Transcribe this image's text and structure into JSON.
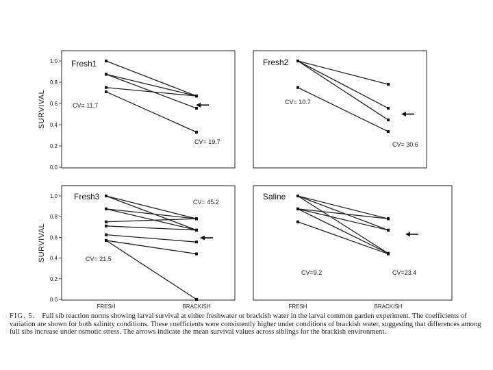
{
  "chart_data": [
    {
      "type": "line",
      "title": "Fresh1",
      "ylabel": "SURVIVAL",
      "ylim": [
        0,
        1.0
      ],
      "yticks": [
        "0.0",
        "0.2",
        "0.4",
        "0.6",
        "0.8",
        "1.0"
      ],
      "categories": [
        "FRESH",
        "BRACKISH"
      ],
      "series": [
        {
          "values": [
            1.0,
            0.67
          ]
        },
        {
          "values": [
            0.875,
            0.67
          ]
        },
        {
          "values": [
            0.875,
            0.555
          ]
        },
        {
          "values": [
            0.75,
            0.67
          ]
        },
        {
          "values": [
            0.71,
            0.33
          ]
        }
      ],
      "mean_arrow": 0.585,
      "cv_labels": {
        "fresh": "CV= 11.7",
        "brackish": "CV= 19.7"
      }
    },
    {
      "type": "line",
      "title": "Fresh2",
      "ylim": [
        0,
        1.0
      ],
      "yticks": [
        "0.0",
        "0.2",
        "0.4",
        "0.6",
        "0.8",
        "1.0"
      ],
      "categories": [
        "FRESH",
        "BRACKISH"
      ],
      "series": [
        {
          "values": [
            1.0,
            0.78
          ]
        },
        {
          "values": [
            1.0,
            0.555
          ]
        },
        {
          "values": [
            1.0,
            0.445
          ]
        },
        {
          "values": [
            0.75,
            0.335
          ]
        }
      ],
      "mean_arrow": 0.5,
      "cv_labels": {
        "fresh": "CV= 10.7",
        "brackish": "CV= 30.6"
      }
    },
    {
      "type": "line",
      "title": "Fresh3",
      "ylabel": "SURVIVAL",
      "ylim": [
        0,
        1.0
      ],
      "yticks": [
        "0.0",
        "0.2",
        "0.4",
        "0.6",
        "0.8",
        "1.0"
      ],
      "categories": [
        "FRESH",
        "BRACKISH"
      ],
      "series": [
        {
          "values": [
            1.0,
            0.78
          ]
        },
        {
          "values": [
            1.0,
            0.67
          ]
        },
        {
          "values": [
            0.875,
            0.78
          ]
        },
        {
          "values": [
            0.875,
            0.67
          ]
        },
        {
          "values": [
            0.75,
            0.78
          ]
        },
        {
          "values": [
            0.71,
            0.67
          ]
        },
        {
          "values": [
            0.625,
            0.555
          ]
        },
        {
          "values": [
            0.57,
            0.44
          ]
        },
        {
          "values": [
            0.57,
            0.0
          ]
        }
      ],
      "mean_arrow": 0.595,
      "cv_labels": {
        "fresh": "CV= 21.5",
        "brackish": "CV= 45.2"
      }
    },
    {
      "type": "line",
      "title": "Saline",
      "ylim": [
        0,
        1.0
      ],
      "categories": [
        "FRESH",
        "BRACKISH"
      ],
      "series": [
        {
          "values": [
            1.0,
            0.78
          ]
        },
        {
          "values": [
            1.0,
            0.67
          ]
        },
        {
          "values": [
            1.0,
            0.445
          ]
        },
        {
          "values": [
            0.875,
            0.78
          ]
        },
        {
          "values": [
            0.875,
            0.67
          ]
        },
        {
          "values": [
            0.875,
            0.445
          ]
        },
        {
          "values": [
            0.75,
            0.44
          ]
        }
      ],
      "mean_arrow": 0.63,
      "cv_labels": {
        "fresh": "CV=9.2",
        "brackish": "CV=23.4"
      }
    }
  ],
  "caption": {
    "label": "FIG. 5.",
    "text": "Full sib reaction norms showing larval survival at either freshwater or brackish water in the larval common garden experiment. The coefficients of variation are shown for both salinity conditions. These coefficients were consistently higher under conditions of brackish water, suggesting that differences among full sibs increase under osmotic stress. The arrows indicate the mean survival values across siblings for the brackish environment."
  }
}
